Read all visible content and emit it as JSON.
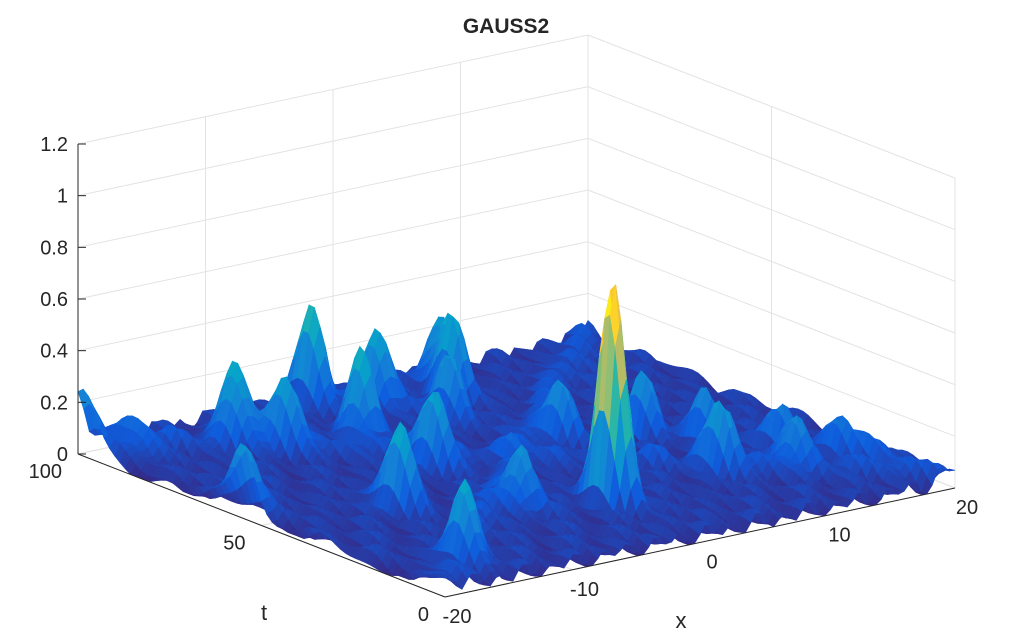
{
  "chart_data": {
    "type": "surface",
    "title": "GAUSS2",
    "xlabel": "x",
    "ylabel": "t",
    "zlabel": "",
    "xlim": [
      -20,
      20
    ],
    "ylim": [
      0,
      100
    ],
    "zlim": [
      0,
      1.2
    ],
    "xticks": [
      "-20",
      "-10",
      "0",
      "10",
      "20"
    ],
    "yticks": [
      "0",
      "50",
      "100"
    ],
    "zticks": [
      "0",
      "0.2",
      "0.4",
      "0.6",
      "0.8",
      "1",
      "1.2"
    ],
    "grid": true,
    "colormap": "parula",
    "colormap_stops": [
      "#352a87",
      "#0f5cdd",
      "#1481d6",
      "#06a4ca",
      "#2eb7a4",
      "#87bf77",
      "#d1bb59",
      "#fec832",
      "#f9fb0e"
    ],
    "peaks": [
      {
        "x": -0.5,
        "t": 22,
        "height": 0.85
      },
      {
        "x": -20,
        "t": 98,
        "height": 0.17
      },
      {
        "x": -20,
        "t": 55,
        "height": 0.29
      },
      {
        "x": -18,
        "t": 90,
        "height": 0.12
      },
      {
        "x": -15.5,
        "t": 10,
        "height": 0.3
      },
      {
        "x": -12,
        "t": 40,
        "height": 0.33
      },
      {
        "x": -12,
        "t": 85,
        "height": 0.37
      },
      {
        "x": -10,
        "t": 78,
        "height": 0.28
      },
      {
        "x": -5,
        "t": 75,
        "height": 0.36
      },
      {
        "x": -5,
        "t": 55,
        "height": 0.3
      },
      {
        "x": -3,
        "t": 95,
        "height": 0.4
      },
      {
        "x": -6,
        "t": 28,
        "height": 0.25
      },
      {
        "x": 0,
        "t": 88,
        "height": 0.34
      },
      {
        "x": 2,
        "t": 75,
        "height": 0.25
      },
      {
        "x": 5,
        "t": 85,
        "height": 0.3
      },
      {
        "x": 6,
        "t": 92,
        "height": 0.27
      },
      {
        "x": 5,
        "t": 55,
        "height": 0.2
      },
      {
        "x": 9,
        "t": 25,
        "height": 0.22
      },
      {
        "x": 10,
        "t": 50,
        "height": 0.24
      },
      {
        "x": 12,
        "t": 40,
        "height": 0.18
      },
      {
        "x": 13,
        "t": 20,
        "height": 0.17
      },
      {
        "x": 15,
        "t": 30,
        "height": 0.16
      },
      {
        "x": 17,
        "t": 22,
        "height": 0.12
      },
      {
        "x": 18,
        "t": 15,
        "height": 0.1
      }
    ],
    "background_level": 0.05
  }
}
